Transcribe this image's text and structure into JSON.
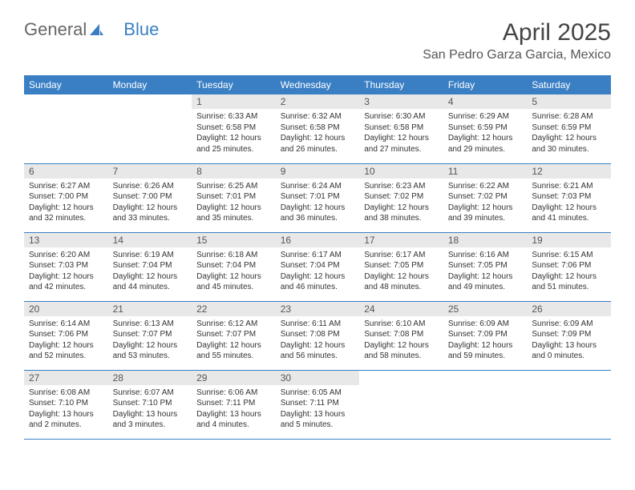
{
  "logo": {
    "text1": "General",
    "text2": "Blue"
  },
  "title": "April 2025",
  "location": "San Pedro Garza Garcia, Mexico",
  "weekdays": [
    "Sunday",
    "Monday",
    "Tuesday",
    "Wednesday",
    "Thursday",
    "Friday",
    "Saturday"
  ],
  "colors": {
    "headerBlue": "#3a7fc4",
    "dayNumBg": "#e8e8e8",
    "textDark": "#333333",
    "textMedium": "#555555"
  },
  "firstDayOffset": 2,
  "daysInMonth": 30,
  "days": {
    "1": {
      "sunrise": "6:33 AM",
      "sunset": "6:58 PM",
      "daylight": "12 hours and 25 minutes."
    },
    "2": {
      "sunrise": "6:32 AM",
      "sunset": "6:58 PM",
      "daylight": "12 hours and 26 minutes."
    },
    "3": {
      "sunrise": "6:30 AM",
      "sunset": "6:58 PM",
      "daylight": "12 hours and 27 minutes."
    },
    "4": {
      "sunrise": "6:29 AM",
      "sunset": "6:59 PM",
      "daylight": "12 hours and 29 minutes."
    },
    "5": {
      "sunrise": "6:28 AM",
      "sunset": "6:59 PM",
      "daylight": "12 hours and 30 minutes."
    },
    "6": {
      "sunrise": "6:27 AM",
      "sunset": "7:00 PM",
      "daylight": "12 hours and 32 minutes."
    },
    "7": {
      "sunrise": "6:26 AM",
      "sunset": "7:00 PM",
      "daylight": "12 hours and 33 minutes."
    },
    "8": {
      "sunrise": "6:25 AM",
      "sunset": "7:01 PM",
      "daylight": "12 hours and 35 minutes."
    },
    "9": {
      "sunrise": "6:24 AM",
      "sunset": "7:01 PM",
      "daylight": "12 hours and 36 minutes."
    },
    "10": {
      "sunrise": "6:23 AM",
      "sunset": "7:02 PM",
      "daylight": "12 hours and 38 minutes."
    },
    "11": {
      "sunrise": "6:22 AM",
      "sunset": "7:02 PM",
      "daylight": "12 hours and 39 minutes."
    },
    "12": {
      "sunrise": "6:21 AM",
      "sunset": "7:03 PM",
      "daylight": "12 hours and 41 minutes."
    },
    "13": {
      "sunrise": "6:20 AM",
      "sunset": "7:03 PM",
      "daylight": "12 hours and 42 minutes."
    },
    "14": {
      "sunrise": "6:19 AM",
      "sunset": "7:04 PM",
      "daylight": "12 hours and 44 minutes."
    },
    "15": {
      "sunrise": "6:18 AM",
      "sunset": "7:04 PM",
      "daylight": "12 hours and 45 minutes."
    },
    "16": {
      "sunrise": "6:17 AM",
      "sunset": "7:04 PM",
      "daylight": "12 hours and 46 minutes."
    },
    "17": {
      "sunrise": "6:17 AM",
      "sunset": "7:05 PM",
      "daylight": "12 hours and 48 minutes."
    },
    "18": {
      "sunrise": "6:16 AM",
      "sunset": "7:05 PM",
      "daylight": "12 hours and 49 minutes."
    },
    "19": {
      "sunrise": "6:15 AM",
      "sunset": "7:06 PM",
      "daylight": "12 hours and 51 minutes."
    },
    "20": {
      "sunrise": "6:14 AM",
      "sunset": "7:06 PM",
      "daylight": "12 hours and 52 minutes."
    },
    "21": {
      "sunrise": "6:13 AM",
      "sunset": "7:07 PM",
      "daylight": "12 hours and 53 minutes."
    },
    "22": {
      "sunrise": "6:12 AM",
      "sunset": "7:07 PM",
      "daylight": "12 hours and 55 minutes."
    },
    "23": {
      "sunrise": "6:11 AM",
      "sunset": "7:08 PM",
      "daylight": "12 hours and 56 minutes."
    },
    "24": {
      "sunrise": "6:10 AM",
      "sunset": "7:08 PM",
      "daylight": "12 hours and 58 minutes."
    },
    "25": {
      "sunrise": "6:09 AM",
      "sunset": "7:09 PM",
      "daylight": "12 hours and 59 minutes."
    },
    "26": {
      "sunrise": "6:09 AM",
      "sunset": "7:09 PM",
      "daylight": "13 hours and 0 minutes."
    },
    "27": {
      "sunrise": "6:08 AM",
      "sunset": "7:10 PM",
      "daylight": "13 hours and 2 minutes."
    },
    "28": {
      "sunrise": "6:07 AM",
      "sunset": "7:10 PM",
      "daylight": "13 hours and 3 minutes."
    },
    "29": {
      "sunrise": "6:06 AM",
      "sunset": "7:11 PM",
      "daylight": "13 hours and 4 minutes."
    },
    "30": {
      "sunrise": "6:05 AM",
      "sunset": "7:11 PM",
      "daylight": "13 hours and 5 minutes."
    }
  },
  "labels": {
    "sunrise": "Sunrise: ",
    "sunset": "Sunset: ",
    "daylight": "Daylight: "
  }
}
